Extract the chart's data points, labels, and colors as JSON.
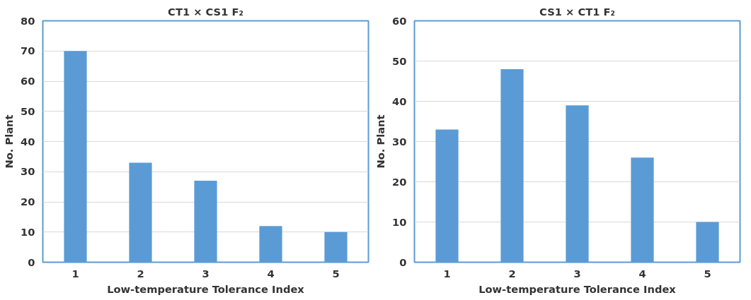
{
  "chart_data": [
    {
      "type": "bar",
      "title": "CT1 × CS1 F₂",
      "xlabel": "Low-temperature Tolerance Index",
      "ylabel": "No. Plant",
      "categories": [
        "1",
        "2",
        "3",
        "4",
        "5"
      ],
      "values": [
        70,
        33,
        27,
        12,
        10
      ],
      "color": "#5b9bd5",
      "ylim": [
        0,
        80
      ],
      "yticks": [
        0,
        10,
        20,
        30,
        40,
        50,
        60,
        70,
        80
      ],
      "grid": "y"
    },
    {
      "type": "bar",
      "title": "CS1 × CT1 F₂",
      "xlabel": "Low-temperature Tolerance Index",
      "ylabel": "No. Plant",
      "categories": [
        "1",
        "2",
        "3",
        "4",
        "5"
      ],
      "values": [
        33,
        48,
        39,
        26,
        10
      ],
      "color": "#5b9bd5",
      "ylim": [
        0,
        60
      ],
      "yticks": [
        0,
        10,
        20,
        30,
        40,
        50,
        60
      ],
      "grid": "y"
    }
  ]
}
